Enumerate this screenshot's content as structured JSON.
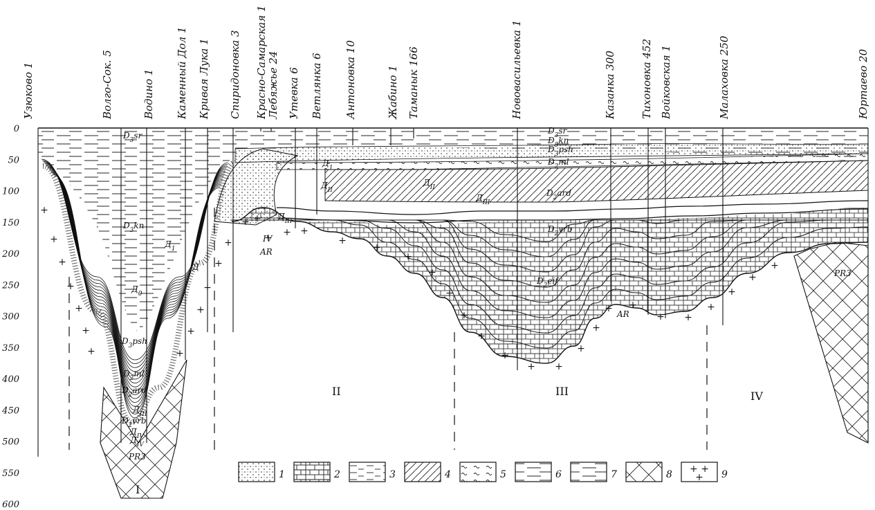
{
  "wells": [
    "Узюково 1",
    "Волго-Сок. 5",
    "Водино 1",
    "Каменный Дол 1",
    "Кривая Лука 1",
    "Спиридоновка 3",
    "Красно-Самарская 1",
    "Лебяжье 24",
    "Утевка 6",
    "Ветлянка 6",
    "Антоновка 10",
    "Жабино 1",
    "Таманык 166",
    "Нововасильевка 1",
    "Казанка 300",
    "Тихоновка 452",
    "Войковская 1",
    "Малаховка 250",
    "Юртаево 20"
  ],
  "depth_axis": {
    "ticks": [
      "0",
      "50",
      "100",
      "150",
      "200",
      "250",
      "300",
      "350",
      "400",
      "450",
      "500",
      "550",
      "600"
    ]
  },
  "zones": [
    "I",
    "II",
    "III",
    "IV"
  ],
  "units": {
    "d3sr": "D3sr",
    "d3kn": "D3kn",
    "d3psh": "D3psh",
    "d2ml": "D2ml",
    "d2ard": "D2ard",
    "d2vrb": "D2vrb",
    "d2eif": "D2eif",
    "d1": "Д1",
    "d0": "Д0",
    "dI": "Д",
    "diii": "ДIII",
    "dii": "ДII",
    "div": "ДIV",
    "iv": "IV",
    "pr3": "PR3",
    "ar": "AR"
  },
  "legend": [
    "1",
    "2",
    "3",
    "4",
    "5",
    "6",
    "7",
    "8",
    "9"
  ]
}
